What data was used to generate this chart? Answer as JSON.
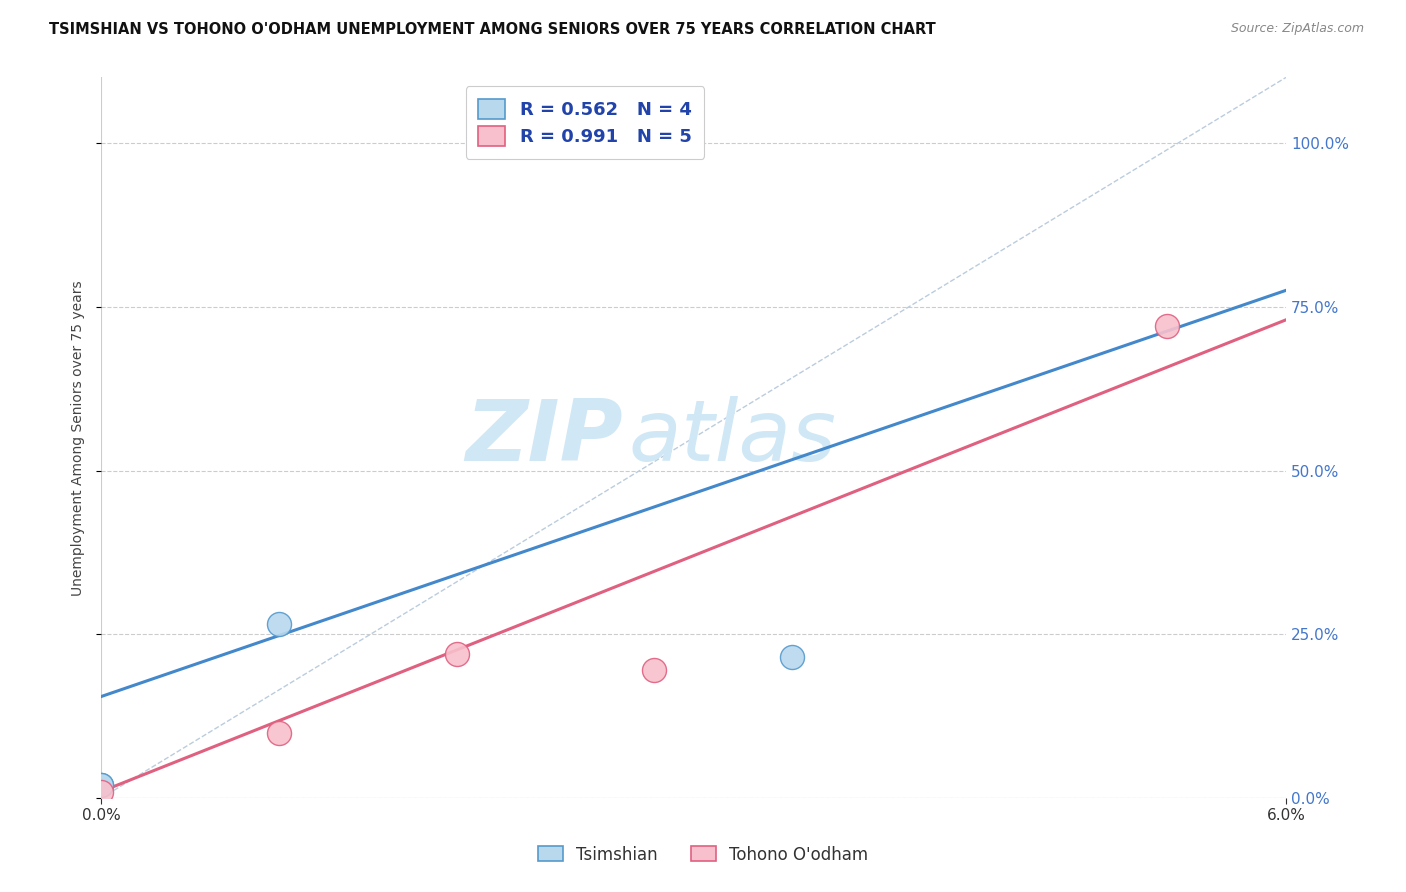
{
  "title": "TSIMSHIAN VS TOHONO O'ODHAM UNEMPLOYMENT AMONG SENIORS OVER 75 YEARS CORRELATION CHART",
  "source": "Source: ZipAtlas.com",
  "ylabel": "Unemployment Among Seniors over 75 years",
  "xlim": [
    0.0,
    0.06
  ],
  "ylim": [
    0.0,
    1.1
  ],
  "xticks": [
    0.0,
    0.06
  ],
  "yticks": [
    0.0,
    0.25,
    0.5,
    0.75,
    1.0
  ],
  "series": [
    {
      "name": "Tsimshian",
      "R": 0.562,
      "N": 4,
      "scatter_color": "#b8d8ee",
      "edge_color": "#5599cc",
      "points_x": [
        0.0,
        0.009,
        0.035,
        0.0
      ],
      "points_y": [
        0.02,
        0.265,
        0.215,
        0.02
      ],
      "line_x": [
        0.0,
        0.06
      ],
      "line_y": [
        0.155,
        0.775
      ],
      "line_color": "#4488cc"
    },
    {
      "name": "Tohono O'odham",
      "R": 0.991,
      "N": 5,
      "scatter_color": "#f8c0cc",
      "edge_color": "#e06080",
      "points_x": [
        0.0,
        0.009,
        0.018,
        0.028,
        0.054
      ],
      "points_y": [
        0.01,
        0.1,
        0.22,
        0.195,
        0.72
      ],
      "line_x": [
        0.0,
        0.06
      ],
      "line_y": [
        0.01,
        0.73
      ],
      "line_color": "#e06080"
    }
  ],
  "diag_line_x": [
    0.0,
    0.06
  ],
  "diag_line_y": [
    0.0,
    1.1
  ],
  "diag_color": "#bbccdd",
  "background_color": "#ffffff",
  "grid_color": "#cccccc",
  "watermark_zip": "ZIP",
  "watermark_atlas": "atlas",
  "watermark_color": "#d0e8f5",
  "right_axis_color": "#4477cc",
  "legend_color": "#2244aa",
  "title_fontsize": 10.5,
  "source_fontsize": 9
}
